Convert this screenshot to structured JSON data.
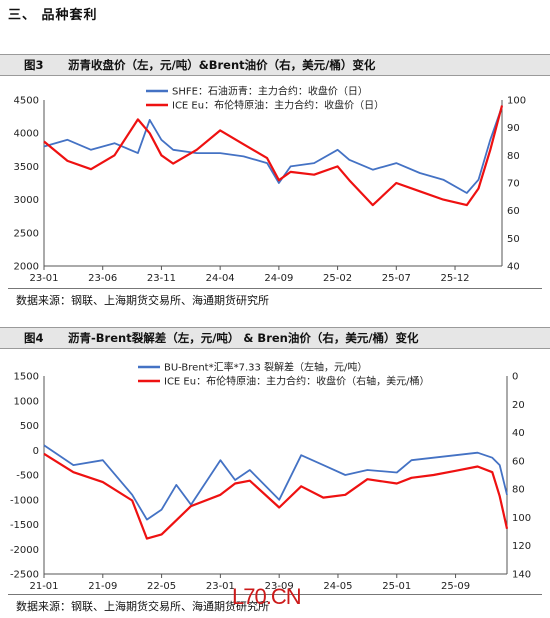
{
  "section_title": "三、  品种套利",
  "figures": [
    {
      "number": "图3",
      "title": "沥青收盘价（左，元/吨）&Brent油价（右，美元/桶）变化",
      "source": "数据来源：钢联、上海期货交易所、海通期货研究所"
    },
    {
      "number": "图4",
      "title": "沥青-Brent裂解差（左，元/吨） & Bren油价（右，美元/桶）变化",
      "source": "数据来源：钢联、上海期货交易所、海通期货研究所"
    }
  ],
  "watermark": "L70.CN",
  "chart_data": [
    {
      "type": "line",
      "x_ticks": [
        "23-01",
        "23-06",
        "23-11",
        "24-04",
        "24-09",
        "25-02",
        "25-07",
        "25-12"
      ],
      "y_left_ticks": [
        2000,
        2500,
        3000,
        3500,
        4000,
        4500
      ],
      "y_left_lim": [
        2000,
        4500
      ],
      "y_right_ticks": [
        40,
        50,
        60,
        70,
        80,
        90,
        100
      ],
      "y_right_lim": [
        40,
        100
      ],
      "grid": false,
      "legend_position": "top-center",
      "colors": {
        "left_series": "#4472c4",
        "right_series": "#ee1111"
      },
      "series": [
        {
          "name": "SHFE：石油沥青：主力合约：收盘价（日）",
          "axis": "left",
          "x": [
            "23-01",
            "23-03",
            "23-05",
            "23-07",
            "23-09",
            "23-10",
            "23-11",
            "23-12",
            "24-02",
            "24-04",
            "24-06",
            "24-08",
            "24-09",
            "24-10",
            "24-12",
            "25-02",
            "25-03",
            "25-05",
            "25-07",
            "25-09",
            "25-11",
            "26-01",
            "26-02",
            "26-03",
            "26-04"
          ],
          "values": [
            3800,
            3900,
            3750,
            3850,
            3700,
            4200,
            3900,
            3750,
            3700,
            3700,
            3650,
            3550,
            3250,
            3500,
            3550,
            3750,
            3600,
            3450,
            3550,
            3400,
            3300,
            3100,
            3300,
            3900,
            4400
          ]
        },
        {
          "name": "ICE Eu：布伦特原油：主力合约：收盘价（日）",
          "axis": "right",
          "x": [
            "23-01",
            "23-03",
            "23-05",
            "23-07",
            "23-09",
            "23-10",
            "23-11",
            "23-12",
            "24-02",
            "24-04",
            "24-06",
            "24-08",
            "24-09",
            "24-10",
            "24-12",
            "25-02",
            "25-03",
            "25-05",
            "25-07",
            "25-09",
            "25-11",
            "26-01",
            "26-02",
            "26-03",
            "26-04"
          ],
          "values": [
            85,
            78,
            75,
            80,
            93,
            88,
            80,
            77,
            82,
            89,
            84,
            79,
            71,
            74,
            73,
            76,
            71,
            62,
            70,
            67,
            64,
            62,
            68,
            82,
            98
          ]
        }
      ]
    },
    {
      "type": "line",
      "x_ticks": [
        "21-01",
        "21-09",
        "22-05",
        "23-01",
        "23-09",
        "24-05",
        "25-01",
        "25-09"
      ],
      "y_left_ticks": [
        -2500,
        -2000,
        -1500,
        -1000,
        -500,
        0,
        500,
        1000,
        1500
      ],
      "y_left_lim": [
        -2500,
        1500
      ],
      "y_right_ticks": [
        0,
        20,
        40,
        60,
        80,
        100,
        120,
        140
      ],
      "y_right_lim": [
        0,
        140
      ],
      "y_right_inverted": true,
      "grid": false,
      "legend_position": "top-center",
      "colors": {
        "left_series": "#4472c4",
        "right_series": "#ee1111"
      },
      "series": [
        {
          "name": "BU-Brent*汇率*7.33 裂解差（左轴，元/吨）",
          "axis": "left",
          "x": [
            "21-01",
            "21-05",
            "21-09",
            "22-01",
            "22-03",
            "22-05",
            "22-07",
            "22-09",
            "23-01",
            "23-03",
            "23-05",
            "23-09",
            "23-12",
            "24-03",
            "24-06",
            "24-09",
            "25-01",
            "25-03",
            "25-06",
            "25-09",
            "25-12",
            "26-02",
            "26-03",
            "26-04"
          ],
          "values": [
            100,
            -300,
            -200,
            -900,
            -1400,
            -1200,
            -700,
            -1100,
            -200,
            -600,
            -400,
            -1000,
            -100,
            -300,
            -500,
            -400,
            -450,
            -200,
            -150,
            -100,
            -50,
            -150,
            -300,
            -900
          ]
        },
        {
          "name": "ICE Eu：布伦特原油：主力合约：收盘价（右轴，美元/桶）",
          "axis": "right",
          "x": [
            "21-01",
            "21-05",
            "21-09",
            "22-01",
            "22-03",
            "22-05",
            "22-07",
            "22-09",
            "23-01",
            "23-03",
            "23-05",
            "23-09",
            "23-12",
            "24-03",
            "24-06",
            "24-09",
            "25-01",
            "25-03",
            "25-06",
            "25-09",
            "25-12",
            "26-02",
            "26-03",
            "26-04"
          ],
          "values": [
            55,
            68,
            75,
            88,
            115,
            112,
            102,
            92,
            84,
            76,
            74,
            93,
            78,
            86,
            84,
            73,
            76,
            72,
            70,
            67,
            64,
            68,
            85,
            108
          ]
        }
      ]
    }
  ]
}
